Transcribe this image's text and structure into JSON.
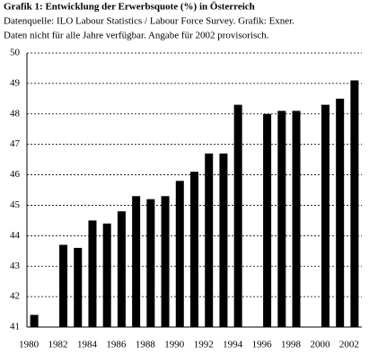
{
  "chart_data": {
    "type": "bar",
    "title": "Grafik 1: Entwicklung der Erwerbsquote (%) in Österreich",
    "subtitle": [
      "Datenquelle: ILO Labour Statistics / Labour Force Survey. Grafik: Exner.",
      "Daten nicht für alle Jahre verfügbar. Angabe für 2002 provisorisch."
    ],
    "categories": [
      "1980",
      null,
      "1982",
      null,
      "1984",
      null,
      "1986",
      null,
      "1988",
      null,
      "1990",
      null,
      "1992",
      null,
      "1994",
      null,
      "1996",
      null,
      "1998",
      null,
      "2000",
      null,
      "2002"
    ],
    "values": [
      41.4,
      null,
      43.7,
      43.6,
      44.5,
      44.4,
      44.8,
      45.3,
      45.2,
      45.3,
      45.8,
      46.1,
      46.7,
      46.7,
      48.3,
      null,
      48.0,
      48.1,
      48.1,
      null,
      48.3,
      48.5,
      49.1
    ],
    "color": "#000000",
    "ylim": [
      41,
      50
    ],
    "yticks": [
      41,
      42,
      43,
      44,
      45,
      46,
      47,
      48,
      49,
      50
    ],
    "grid": true
  }
}
